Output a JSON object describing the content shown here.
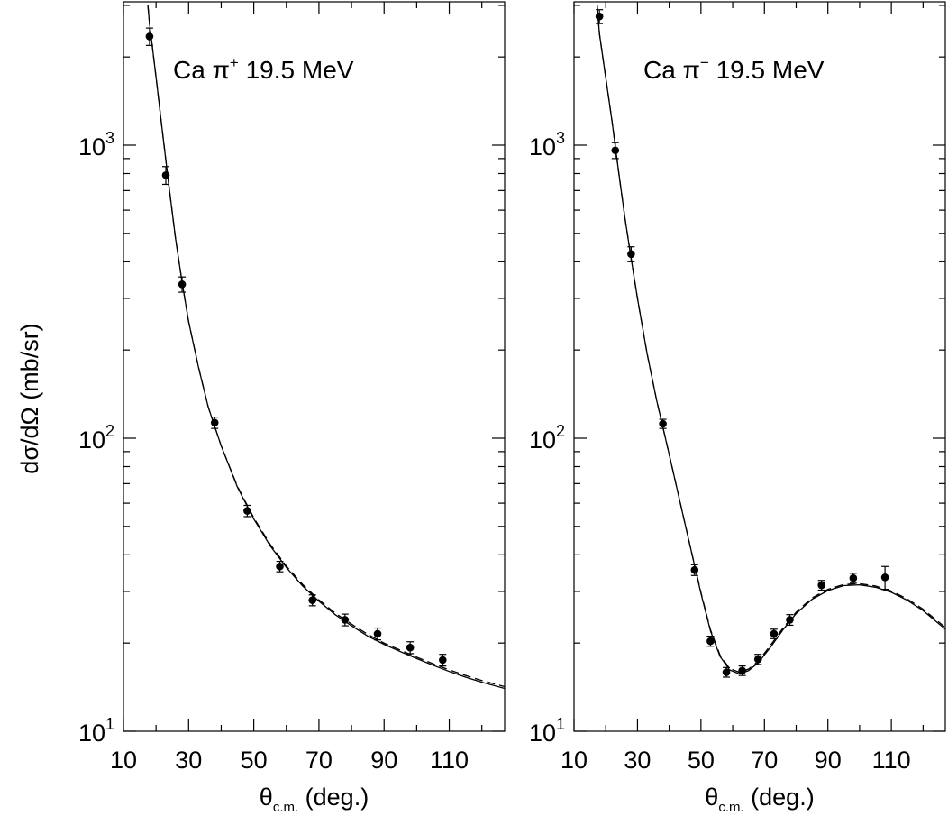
{
  "y_axis_title": "dσ/dΩ (mb/sr)",
  "chart_data": [
    {
      "type": "scatter",
      "annotation": {
        "prefix": "Ca π",
        "charge": "+",
        "suffix": " 19.5 MeV"
      },
      "xlabel": {
        "main": "θ",
        "sub": "c.m.",
        "rest": " (deg.)"
      },
      "ylabel": "dσ/dΩ (mb/sr)",
      "xlim": [
        10,
        127
      ],
      "ylim": [
        10,
        3000
      ],
      "yscale": "log",
      "x_ticks": [
        10,
        30,
        50,
        70,
        90,
        110
      ],
      "x_tick_labels": [
        "10",
        "30",
        "50",
        "70",
        "90",
        "110"
      ],
      "y_ticks": [
        10,
        100,
        1000
      ],
      "y_tick_labels": [
        {
          "base": "10",
          "exp": "1"
        },
        {
          "base": "10",
          "exp": "2"
        },
        {
          "base": "10",
          "exp": "3"
        }
      ],
      "grid": false,
      "series": [
        {
          "kind": "points",
          "points": [
            {
              "x": 18,
              "y": 2350,
              "err": 160
            },
            {
              "x": 23,
              "y": 790,
              "err": 55
            },
            {
              "x": 28,
              "y": 335,
              "err": 20
            },
            {
              "x": 38,
              "y": 113,
              "err": 5
            },
            {
              "x": 48,
              "y": 56.5,
              "err": 2.5
            },
            {
              "x": 58,
              "y": 36.5,
              "err": 1.5
            },
            {
              "x": 68,
              "y": 28,
              "err": 1.2
            },
            {
              "x": 78,
              "y": 24,
              "err": 1.1
            },
            {
              "x": 88,
              "y": 21.5,
              "err": 1
            },
            {
              "x": 98,
              "y": 19.3,
              "err": 0.9
            },
            {
              "x": 108,
              "y": 17.5,
              "err": 0.8
            }
          ]
        },
        {
          "kind": "line",
          "style": "solid",
          "points": [
            [
              17.5,
              3000
            ],
            [
              18,
              2600
            ],
            [
              20,
              1700
            ],
            [
              22,
              1100
            ],
            [
              24,
              720
            ],
            [
              26,
              480
            ],
            [
              28,
              340
            ],
            [
              30,
              250
            ],
            [
              33,
              175
            ],
            [
              36,
              128
            ],
            [
              40,
              94
            ],
            [
              45,
              68
            ],
            [
              50,
              53
            ],
            [
              55,
              43
            ],
            [
              60,
              36.2
            ],
            [
              65,
              31.3
            ],
            [
              70,
              27.8
            ],
            [
              75,
              25
            ],
            [
              80,
              22.9
            ],
            [
              85,
              21.1
            ],
            [
              90,
              19.8
            ],
            [
              95,
              18.7
            ],
            [
              100,
              17.7
            ],
            [
              105,
              16.8
            ],
            [
              110,
              16
            ],
            [
              115,
              15.3
            ],
            [
              120,
              14.7
            ],
            [
              127,
              14
            ]
          ]
        },
        {
          "kind": "line",
          "style": "dashed",
          "points": [
            [
              17.5,
              3000
            ],
            [
              18,
              2600
            ],
            [
              20,
              1700
            ],
            [
              22,
              1100
            ],
            [
              24,
              720
            ],
            [
              26,
              480
            ],
            [
              28,
              340
            ],
            [
              30,
              250
            ],
            [
              33,
              175
            ],
            [
              36,
              128
            ],
            [
              40,
              94
            ],
            [
              45,
              68.5
            ],
            [
              50,
              53.5
            ],
            [
              55,
              43.5
            ],
            [
              60,
              36.6
            ],
            [
              65,
              31.7
            ],
            [
              70,
              28.1
            ],
            [
              75,
              25.3
            ],
            [
              80,
              23.2
            ],
            [
              85,
              21.4
            ],
            [
              90,
              20
            ],
            [
              95,
              18.9
            ],
            [
              100,
              17.9
            ],
            [
              105,
              17
            ],
            [
              110,
              16.2
            ],
            [
              115,
              15.5
            ],
            [
              120,
              14.9
            ],
            [
              127,
              14.2
            ]
          ]
        }
      ]
    },
    {
      "type": "scatter",
      "annotation": {
        "prefix": "Ca π",
        "charge": "−",
        "suffix": " 19.5 MeV"
      },
      "xlabel": {
        "main": "θ",
        "sub": "c.m.",
        "rest": " (deg.)"
      },
      "ylabel": "",
      "xlim": [
        10,
        127
      ],
      "ylim": [
        10,
        3000
      ],
      "yscale": "log",
      "x_ticks": [
        10,
        30,
        50,
        70,
        90,
        110
      ],
      "x_tick_labels": [
        "10",
        "30",
        "50",
        "70",
        "90",
        "110"
      ],
      "y_ticks": [
        10,
        100,
        1000
      ],
      "y_tick_labels": [
        {
          "base": "10",
          "exp": "1"
        },
        {
          "base": "10",
          "exp": "2"
        },
        {
          "base": "10",
          "exp": "3"
        }
      ],
      "grid": false,
      "series": [
        {
          "kind": "points",
          "points": [
            {
              "x": 18,
              "y": 2750,
              "err": 150
            },
            {
              "x": 23,
              "y": 960,
              "err": 60
            },
            {
              "x": 28,
              "y": 425,
              "err": 25
            },
            {
              "x": 38,
              "y": 112,
              "err": 4
            },
            {
              "x": 48,
              "y": 35.5,
              "err": 1.5
            },
            {
              "x": 53,
              "y": 20.3,
              "err": 0.8
            },
            {
              "x": 58,
              "y": 15.9,
              "err": 0.6
            },
            {
              "x": 63,
              "y": 16.1,
              "err": 0.6
            },
            {
              "x": 68,
              "y": 17.6,
              "err": 0.7
            },
            {
              "x": 73,
              "y": 21.5,
              "err": 0.8
            },
            {
              "x": 78,
              "y": 24,
              "err": 1
            },
            {
              "x": 88,
              "y": 31.5,
              "err": 1.2
            },
            {
              "x": 98,
              "y": 33.3,
              "err": 1.3
            },
            {
              "x": 108,
              "y": 33.5,
              "err": 3
            }
          ]
        },
        {
          "kind": "line",
          "style": "solid",
          "points": [
            [
              17.3,
              3000
            ],
            [
              18,
              2400
            ],
            [
              20,
              1700
            ],
            [
              22,
              1200
            ],
            [
              24,
              820
            ],
            [
              26,
              570
            ],
            [
              28,
              410
            ],
            [
              30,
              300
            ],
            [
              33,
              195
            ],
            [
              36,
              135
            ],
            [
              40,
              88
            ],
            [
              45,
              51
            ],
            [
              50,
              29.5
            ],
            [
              53,
              22
            ],
            [
              56,
              18
            ],
            [
              59,
              16.2
            ],
            [
              62,
              15.7
            ],
            [
              65,
              16.1
            ],
            [
              68,
              17.1
            ],
            [
              72,
              19.4
            ],
            [
              76,
              22.3
            ],
            [
              80,
              25.2
            ],
            [
              85,
              28.2
            ],
            [
              90,
              30.2
            ],
            [
              95,
              31.4
            ],
            [
              100,
              31.6
            ],
            [
              105,
              31
            ],
            [
              110,
              29.8
            ],
            [
              115,
              28
            ],
            [
              120,
              25.8
            ],
            [
              127,
              22.3
            ]
          ]
        },
        {
          "kind": "line",
          "style": "dashed",
          "points": [
            [
              17.3,
              3000
            ],
            [
              18,
              2400
            ],
            [
              20,
              1700
            ],
            [
              22,
              1200
            ],
            [
              24,
              820
            ],
            [
              26,
              570
            ],
            [
              28,
              410
            ],
            [
              30,
              300
            ],
            [
              33,
              195
            ],
            [
              36,
              135
            ],
            [
              40,
              88
            ],
            [
              45,
              51
            ],
            [
              50,
              29.7
            ],
            [
              53,
              22.2
            ],
            [
              56,
              18.2
            ],
            [
              59,
              16.4
            ],
            [
              62,
              15.9
            ],
            [
              65,
              16.3
            ],
            [
              68,
              17.3
            ],
            [
              72,
              19.7
            ],
            [
              76,
              22.6
            ],
            [
              80,
              25.5
            ],
            [
              85,
              28.5
            ],
            [
              90,
              30.5
            ],
            [
              95,
              31.7
            ],
            [
              100,
              31.9
            ],
            [
              105,
              31.3
            ],
            [
              110,
              30.1
            ],
            [
              115,
              28.3
            ],
            [
              120,
              26.1
            ],
            [
              127,
              22.6
            ]
          ]
        }
      ]
    }
  ]
}
